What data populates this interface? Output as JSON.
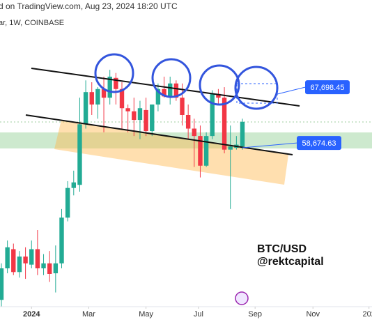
{
  "header": {
    "source": "d on TradingView.com, Aug 23, 2024 18:20 UTC",
    "symbol": "ar, 1W, COINBASE"
  },
  "chart_data": {
    "type": "candlestick",
    "categories": [
      null,
      null,
      null,
      null,
      null,
      null,
      null,
      null,
      null,
      null,
      null,
      null,
      null,
      null,
      null,
      null,
      null,
      null,
      null,
      null,
      null,
      null,
      null,
      null,
      null,
      null,
      null,
      null,
      null,
      null,
      null,
      null,
      null,
      null,
      null,
      null,
      null,
      null,
      null,
      null,
      null
    ],
    "open": [
      33300,
      38400,
      41500,
      37800,
      40300,
      39000,
      41500,
      38400,
      39200,
      37600,
      39200,
      46600,
      51400,
      51900,
      61700,
      66900,
      64900,
      67400,
      66000,
      69200,
      67400,
      64300,
      63800,
      62400,
      64000,
      60600,
      64900,
      67400,
      66200,
      68300,
      66000,
      63200,
      61000,
      59800,
      55000,
      59800,
      66600,
      66000,
      57600,
      57900,
      58100
    ],
    "high": [
      39200,
      42900,
      42400,
      41200,
      41800,
      42900,
      44600,
      40700,
      41200,
      42100,
      48000,
      52500,
      54200,
      66000,
      68800,
      68500,
      67700,
      69400,
      70500,
      70000,
      68500,
      64900,
      66000,
      65500,
      66000,
      64900,
      68300,
      69400,
      69400,
      68800,
      68300,
      64900,
      62600,
      61500,
      60400,
      67200,
      67400,
      67700,
      61500,
      59800,
      62600
    ],
    "low": [
      32200,
      37600,
      37300,
      36900,
      36700,
      38400,
      37300,
      37300,
      36200,
      34500,
      38400,
      46000,
      50200,
      50800,
      61000,
      63200,
      62600,
      60400,
      64900,
      64900,
      61000,
      60400,
      59800,
      59300,
      59800,
      59800,
      63800,
      66000,
      64900,
      65500,
      61500,
      59300,
      54800,
      53100,
      54800,
      59300,
      64900,
      57000,
      48000,
      57600,
      57600
    ],
    "close": [
      38400,
      41800,
      37800,
      40300,
      39200,
      41500,
      38400,
      39200,
      37500,
      39200,
      46600,
      51400,
      52300,
      61700,
      66900,
      64900,
      67400,
      66000,
      69400,
      67400,
      64300,
      63800,
      62400,
      64300,
      60600,
      64900,
      67400,
      66200,
      68300,
      66000,
      63200,
      61000,
      59800,
      55000,
      59800,
      66600,
      66000,
      57600,
      58100,
      58400,
      62100
    ],
    "up_color": "#22ab94",
    "down_color": "#f23645",
    "ylim": [
      32200,
      81800
    ],
    "xlim": [
      -0.23,
      61.5
    ],
    "xticks": [
      {
        "value": 5,
        "label": "2024"
      },
      {
        "value": 14.5,
        "label": "Mar"
      },
      {
        "value": 24,
        "label": "May"
      },
      {
        "value": 32.7,
        "label": "Jul"
      },
      {
        "value": 42.1,
        "label": "Sep"
      },
      {
        "value": 51.7,
        "label": "Nov"
      },
      {
        "value": 61,
        "label": "202"
      }
    ],
    "price_labels": [
      67698.45,
      58674.63
    ],
    "value_labels": [
      "67,698.45",
      "58,674.63"
    ],
    "label_color": "#2962ff",
    "annotations": [
      "BTC/USD",
      "@rektcapital"
    ]
  }
}
